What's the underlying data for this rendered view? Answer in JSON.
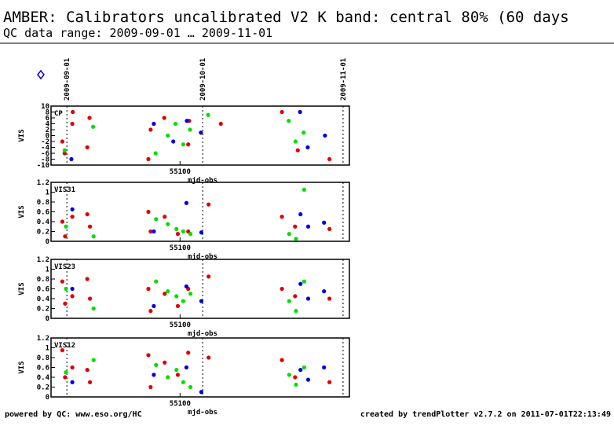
{
  "header": {
    "title": "AMBER: Calibrators uncalibrated V2 K band: central 80% (60 days",
    "subtitle": "QC data range: 2009-09-01 … 2009-11-01"
  },
  "date_markers": [
    {
      "value": 55075,
      "label": "2009-09-01"
    },
    {
      "value": 55105,
      "label": "2009-10-01"
    },
    {
      "value": 55136,
      "label": "2009-11-01"
    }
  ],
  "footer": {
    "left": "powered by QC: www.eso.org/HC",
    "right": "created by trendPlotter v2.7.2 on 2011-07-01T22:13:49"
  },
  "chart_data": [
    {
      "type": "scatter",
      "label": "CP",
      "y_label": "VIS",
      "x_label": "mjd-obs",
      "xlim": [
        55071.5,
        55137.4
      ],
      "xticks": [
        55100
      ],
      "ylim": [
        -10,
        10
      ],
      "yticks": [
        -10,
        -8,
        -6,
        -4,
        -2,
        0,
        2,
        4,
        6,
        8,
        10
      ],
      "series": [
        {
          "color": "#e00000",
          "x": [
            55074,
            55074.5,
            55076.2,
            55076.3,
            55079.5,
            55080,
            55093,
            55093.5,
            55096.5,
            55101.8,
            55102,
            55109,
            55122.5,
            55126,
            55133
          ],
          "values": [
            -2,
            -6,
            4,
            8,
            -4,
            6,
            -8,
            2,
            6,
            -3,
            5,
            4,
            8,
            -5,
            -8
          ]
        },
        {
          "color": "#00e000",
          "x": [
            55074.5,
            55080.8,
            55094.6,
            55097.3,
            55099,
            55100.7,
            55102.2,
            55106.2,
            55124,
            55125.5,
            55127.3
          ],
          "values": [
            -5,
            3,
            -6,
            0,
            4,
            -3,
            2,
            7,
            5,
            -2,
            1
          ]
        },
        {
          "color": "#0000e0",
          "x": [
            55076,
            55094.2,
            55098.5,
            55101.5,
            55104.6,
            55126.5,
            55128.2,
            55132
          ],
          "values": [
            -8,
            4,
            -2,
            5,
            1,
            8,
            -4,
            0
          ]
        }
      ]
    },
    {
      "type": "scatter",
      "label": "VIS31",
      "y_label": "VIS",
      "x_label": "mjd-obs",
      "xlim": [
        55071.5,
        55137.4
      ],
      "xticks": [
        55100
      ],
      "ylim": [
        0,
        1.2
      ],
      "yticks": [
        0,
        0.2,
        0.4,
        0.6,
        0.8,
        1,
        1.2
      ],
      "series": [
        {
          "color": "#e00000",
          "x": [
            55074,
            55074.6,
            55076.2,
            55079.5,
            55080.1,
            55093,
            55093.5,
            55096.6,
            55099.5,
            55101.8,
            55106.3,
            55122.5,
            55125.4,
            55133
          ],
          "values": [
            0.4,
            0.1,
            0.5,
            0.55,
            0.3,
            0.6,
            0.2,
            0.5,
            0.15,
            0.2,
            0.75,
            0.5,
            0.3,
            0.25
          ]
        },
        {
          "color": "#00e000",
          "x": [
            55074.8,
            55080.9,
            55094.7,
            55097.3,
            55099.2,
            55100.7,
            55102.3,
            55124.1,
            55125.6,
            55127.4
          ],
          "values": [
            0.3,
            0.1,
            0.45,
            0.35,
            0.25,
            0.2,
            0.15,
            0.15,
            0.05,
            1.05
          ]
        },
        {
          "color": "#0000e0",
          "x": [
            55076.2,
            55094.2,
            55101.4,
            55104.7,
            55126.6,
            55128.3,
            55131.8
          ],
          "values": [
            0.65,
            0.2,
            0.78,
            0.18,
            0.55,
            0.3,
            0.38
          ]
        }
      ]
    },
    {
      "type": "scatter",
      "label": "VIS23",
      "y_label": "VIS",
      "x_label": "mjd-obs",
      "xlim": [
        55071.5,
        55137.4
      ],
      "xticks": [
        55100
      ],
      "ylim": [
        0,
        1.2
      ],
      "yticks": [
        0,
        0.2,
        0.4,
        0.6,
        0.8,
        1,
        1.2
      ],
      "series": [
        {
          "color": "#e00000",
          "x": [
            55074,
            55074.6,
            55076.2,
            55079.5,
            55080.1,
            55093,
            55093.5,
            55096.6,
            55099.5,
            55101.8,
            55106.3,
            55122.5,
            55125.4,
            55133
          ],
          "values": [
            0.75,
            0.3,
            0.45,
            0.8,
            0.4,
            0.6,
            0.15,
            0.5,
            0.25,
            0.6,
            0.85,
            0.6,
            0.45,
            0.4
          ]
        },
        {
          "color": "#00e000",
          "x": [
            55074.8,
            55080.9,
            55094.7,
            55097.3,
            55099.2,
            55100.7,
            55102.3,
            55124.1,
            55125.6,
            55127.4
          ],
          "values": [
            0.6,
            0.2,
            0.75,
            0.55,
            0.45,
            0.35,
            0.5,
            0.35,
            0.15,
            0.75
          ]
        },
        {
          "color": "#0000e0",
          "x": [
            55076.2,
            55094.2,
            55101.4,
            55104.7,
            55126.6,
            55128.3,
            55131.8
          ],
          "values": [
            0.6,
            0.25,
            0.65,
            0.35,
            0.7,
            0.4,
            0.55
          ]
        }
      ]
    },
    {
      "type": "scatter",
      "label": "VIS12",
      "y_label": "VIS",
      "x_label": "mjd-obs",
      "xlim": [
        55071.5,
        55137.4
      ],
      "xticks": [
        55100
      ],
      "ylim": [
        0,
        1.2
      ],
      "yticks": [
        0,
        0.2,
        0.4,
        0.6,
        0.8,
        1,
        1.2
      ],
      "series": [
        {
          "color": "#e00000",
          "x": [
            55074,
            55074.6,
            55076.2,
            55079.5,
            55080.1,
            55093,
            55093.5,
            55096.6,
            55099.5,
            55101.8,
            55106.3,
            55122.5,
            55125.4,
            55133
          ],
          "values": [
            0.95,
            0.4,
            0.6,
            0.55,
            0.3,
            0.85,
            0.2,
            0.7,
            0.45,
            0.9,
            0.8,
            0.75,
            0.4,
            0.3
          ]
        },
        {
          "color": "#00e000",
          "x": [
            55074.8,
            55080.9,
            55094.7,
            55097.3,
            55099.2,
            55100.7,
            55102.3,
            55124.1,
            55125.6,
            55127.4
          ],
          "values": [
            0.5,
            0.75,
            0.65,
            0.4,
            0.55,
            0.3,
            0.2,
            0.45,
            0.25,
            0.6
          ]
        },
        {
          "color": "#0000e0",
          "x": [
            55076.2,
            55094.2,
            55101.4,
            55104.7,
            55126.6,
            55128.3,
            55131.8
          ],
          "values": [
            0.3,
            0.45,
            0.6,
            0.1,
            0.55,
            0.35,
            0.6
          ]
        }
      ]
    }
  ]
}
